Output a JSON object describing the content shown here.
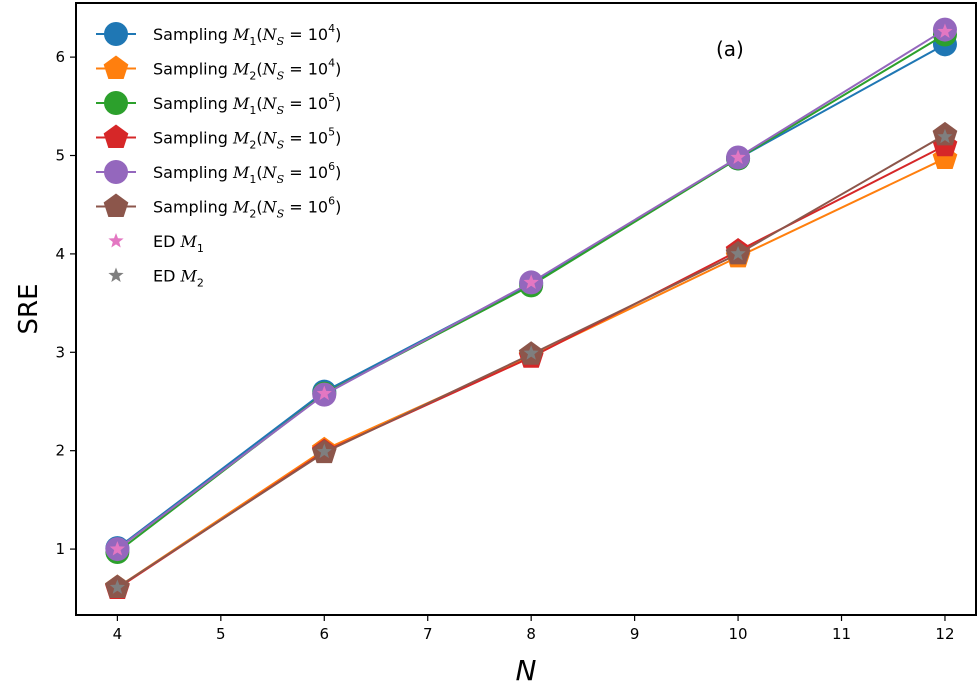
{
  "chart_data": {
    "type": "line",
    "panel_label": "(a)",
    "xlabel": "N",
    "ylabel": "SRE",
    "xlim": [
      3.6,
      12.3
    ],
    "ylim": [
      0.33,
      6.55
    ],
    "xticks": [
      4,
      5,
      6,
      7,
      8,
      9,
      10,
      11,
      12
    ],
    "yticks": [
      1,
      2,
      3,
      4,
      5,
      6
    ],
    "grid": false,
    "legend_position": "top-left",
    "x": [
      4,
      6,
      8,
      10,
      12
    ],
    "series": [
      {
        "name": "Sampling M1(NS = 10^4)",
        "legend": {
          "pre": "Sampling ",
          "m": "M",
          "msub": "1",
          "ns": "10",
          "exp": "4"
        },
        "color": "#1f77b4",
        "marker": "circle",
        "values": [
          1.01,
          2.6,
          3.7,
          4.97,
          6.13
        ]
      },
      {
        "name": "Sampling M2(NS = 10^4)",
        "legend": {
          "pre": "Sampling  ",
          "m": "M",
          "msub": "2",
          "ns": "10",
          "exp": "4"
        },
        "color": "#ff7f0e",
        "marker": "pentagon",
        "values": [
          0.61,
          2.01,
          2.96,
          3.97,
          4.97
        ]
      },
      {
        "name": "Sampling M1(NS = 10^5)",
        "legend": {
          "pre": "Sampling ",
          "m": "M",
          "msub": "1",
          "ns": "10",
          "exp": "5"
        },
        "color": "#2ca02c",
        "marker": "circle",
        "values": [
          0.97,
          2.58,
          3.68,
          4.97,
          6.23
        ]
      },
      {
        "name": "Sampling M2(NS = 10^5)",
        "legend": {
          "pre": "Sampling  ",
          "m": "M",
          "msub": "2",
          "ns": "10",
          "exp": "5"
        },
        "color": "#d62728",
        "marker": "pentagon",
        "values": [
          0.6,
          1.99,
          2.95,
          4.03,
          5.1
        ]
      },
      {
        "name": "Sampling M1(NS = 10^6)",
        "legend": {
          "pre": "Sampling ",
          "m": "M",
          "msub": "1",
          "ns": "10",
          "exp": "6"
        },
        "color": "#9467bd",
        "marker": "circle",
        "values": [
          1.0,
          2.57,
          3.71,
          4.98,
          6.28
        ]
      },
      {
        "name": "Sampling M2(NS = 10^6)",
        "legend": {
          "pre": "Sampling  ",
          "m": "M",
          "msub": "2",
          "ns": "10",
          "exp": "6"
        },
        "color": "#8c564b",
        "marker": "pentagon",
        "values": [
          0.61,
          1.98,
          2.98,
          4.0,
          5.21
        ]
      }
    ],
    "ed_series": [
      {
        "name": "ED M1",
        "legend": {
          "pre": "ED ",
          "m": "M",
          "msub": "1"
        },
        "color": "#e377c2",
        "marker": "star",
        "values": [
          1.0,
          2.58,
          3.71,
          4.98,
          6.26
        ]
      },
      {
        "name": "ED M2",
        "legend": {
          "pre": "ED ",
          "m": "M",
          "msub": "2"
        },
        "color": "#7f7f7f",
        "marker": "star",
        "values": [
          0.61,
          1.99,
          2.99,
          4.0,
          5.19
        ]
      }
    ]
  }
}
